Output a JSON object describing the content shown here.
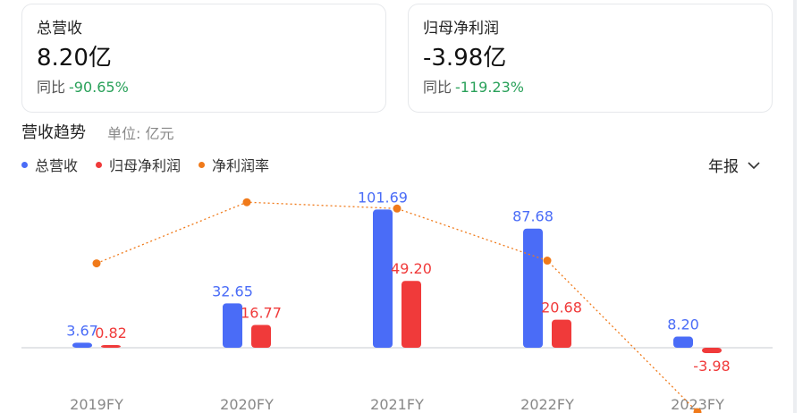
{
  "cards": [
    {
      "label": "总营收",
      "value": "8.20亿",
      "yoy_label": "同比",
      "yoy_value": "-90.65%"
    },
    {
      "label": "归母净利润",
      "value": "-3.98亿",
      "yoy_label": "同比",
      "yoy_value": "-119.23%"
    }
  ],
  "section": {
    "title": "营收趋势",
    "unit": "单位: 亿元"
  },
  "period_selector": {
    "label": "年报",
    "icon": "chevron-down-icon"
  },
  "colors": {
    "revenue": "#4a6cf7",
    "profit": "#f03a3a",
    "margin": "#f07a1a",
    "gain_text": "#2aa15a"
  },
  "chart_data": {
    "type": "bar",
    "categories": [
      "2019FY",
      "2020FY",
      "2021FY",
      "2022FY",
      "2023FY"
    ],
    "series": [
      {
        "name": "总营收",
        "values": [
          3.67,
          32.65,
          101.69,
          87.68,
          8.2
        ],
        "labels": [
          "3.67",
          "32.65",
          "101.69",
          "87.68",
          "8.20"
        ]
      },
      {
        "name": "归母净利润",
        "values": [
          0.82,
          16.77,
          49.2,
          20.68,
          -3.98
        ],
        "labels": [
          "0.82",
          "16.77",
          "49.20",
          "20.68",
          "-3.98"
        ]
      },
      {
        "name": "净利润率",
        "type": "line",
        "values": [
          22.3,
          51.4,
          48.4,
          23.6,
          -48.5
        ]
      }
    ],
    "legend": "top-left",
    "grid": false
  }
}
